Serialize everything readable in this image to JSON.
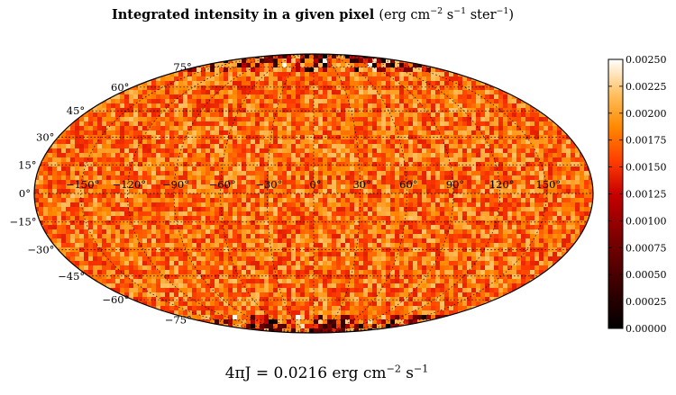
{
  "title": {
    "main": "Integrated intensity in a given pixel",
    "unit_prefix": "(erg cm",
    "exp1": "−2",
    "unit_mid": " s",
    "exp2": "−1",
    "unit_mid2": " ster",
    "exp3": "−1",
    "unit_suffix": ")"
  },
  "caption": {
    "lhs": "4πJ = 0.0216",
    "unit_prefix": " erg cm",
    "exp1": "−2",
    "unit_mid": " s",
    "exp2": "−1"
  },
  "chart_data": {
    "type": "heatmap",
    "projection": "mollweide",
    "value_range": [
      0.0,
      0.0025
    ],
    "typical_value_range": [
      0.0014,
      0.0022
    ],
    "lon_labels": [
      "−150°",
      "−120°",
      "−90°",
      "−60°",
      "−30°",
      "0°",
      "30°",
      "60°",
      "90°",
      "120°",
      "150°"
    ],
    "lon_values": [
      -150,
      -120,
      -90,
      -60,
      -30,
      0,
      30,
      60,
      90,
      120,
      150
    ],
    "lat_labels": [
      "75°",
      "60°",
      "45°",
      "30°",
      "15°",
      "0°",
      "−15°",
      "−30°",
      "−45°",
      "−60°",
      "−75°"
    ],
    "lat_values": [
      75,
      60,
      45,
      30,
      15,
      0,
      -15,
      -30,
      -45,
      -60,
      -75
    ],
    "grid": true,
    "colormap": "gist_heat",
    "colorbar": {
      "ticks": [
        "0.00000",
        "0.00025",
        "0.00050",
        "0.00075",
        "0.00100",
        "0.00125",
        "0.00150",
        "0.00175",
        "0.00200",
        "0.00225",
        "0.00250"
      ],
      "tick_values": [
        0.0,
        0.00025,
        0.0005,
        0.00075,
        0.001,
        0.00125,
        0.0015,
        0.00175,
        0.002,
        0.00225,
        0.0025
      ]
    }
  }
}
